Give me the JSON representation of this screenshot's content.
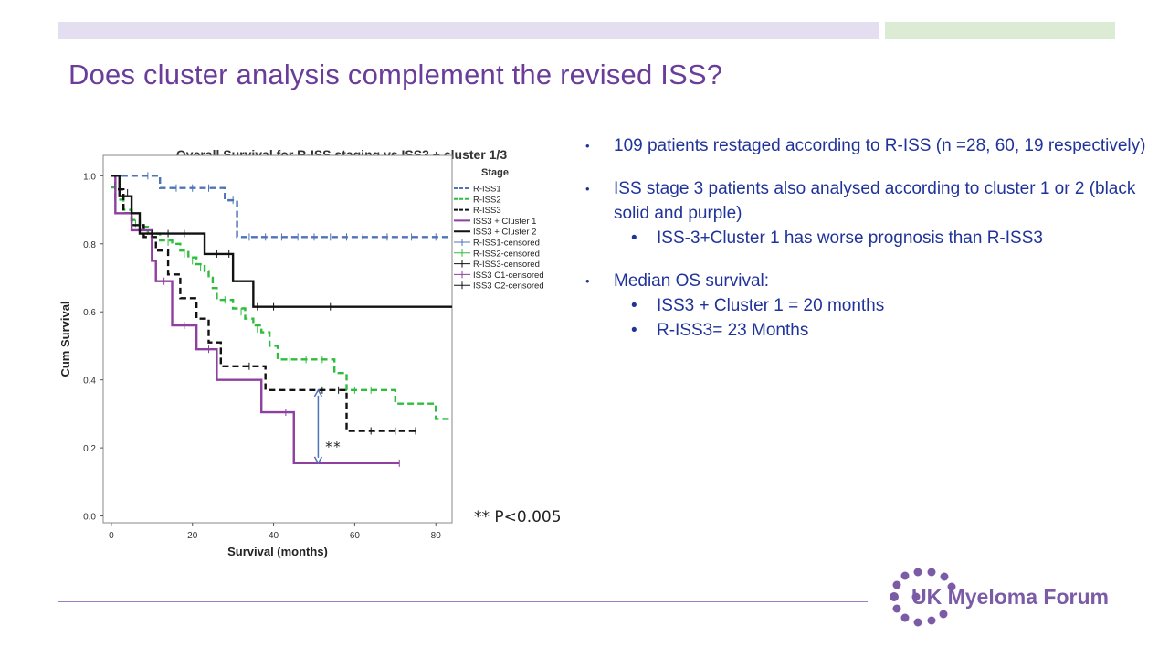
{
  "slide": {
    "title": "Does cluster analysis complement the revised ISS?",
    "p_note": "** P<0.005",
    "brand": {
      "name": "UK Myeloma Forum",
      "purple": "#6a3d9a",
      "lilac": "#e3dff0",
      "mint": "#dcebd4"
    }
  },
  "bullets": [
    {
      "level": 1,
      "text": "109 patients restaged according to R-ISS (n =28, 60, 19 respectively)"
    },
    {
      "level": 1,
      "text": "ISS stage 3 patients also analysed according to cluster 1 or 2 (black solid and purple)"
    },
    {
      "level": 2,
      "text": "ISS-3+Cluster 1 has worse prognosis than R-ISS3"
    },
    {
      "level": 1,
      "text": "Median OS survival:"
    },
    {
      "level": 2,
      "text": "ISS3 + Cluster 1 = 20 months"
    },
    {
      "level": 2,
      "text": "R-ISS3= 23 Months"
    }
  ],
  "chart_data": {
    "type": "line",
    "title": "Overall Survival for R-ISS staging vs ISS3 + cluster 1/3",
    "xlabel": "Survival (months)",
    "ylabel": "Cum Survival",
    "xlim": [
      -2,
      84
    ],
    "ylim": [
      -0.02,
      1.06
    ],
    "xticks": [
      "0",
      "20",
      "40",
      "60",
      "80"
    ],
    "yticks": [
      "0.0",
      "0.2",
      "0.4",
      "0.6",
      "0.8",
      "1.0"
    ],
    "legend_title": "Stage",
    "legend_position": "right",
    "legend": [
      {
        "label": "R-ISS1",
        "color": "#4f73b8",
        "style": "dash"
      },
      {
        "label": "R-ISS2",
        "color": "#2ebd3c",
        "style": "dash"
      },
      {
        "label": "R-ISS3",
        "color": "#111111",
        "style": "dash"
      },
      {
        "label": "ISS3 + Cluster 1",
        "color": "#8e3fa0",
        "style": "solid"
      },
      {
        "label": "ISS3 + Cluster 2",
        "color": "#111111",
        "style": "solid"
      },
      {
        "label": "R-ISS1-censored",
        "color": "#4f73b8",
        "style": "cross"
      },
      {
        "label": "R-ISS2-censored",
        "color": "#2ebd3c",
        "style": "cross"
      },
      {
        "label": "R-ISS3-censored",
        "color": "#111111",
        "style": "cross"
      },
      {
        "label": "ISS3 C1-censored",
        "color": "#8e3fa0",
        "style": "cross"
      },
      {
        "label": "ISS3 C2-censored",
        "color": "#111111",
        "style": "cross"
      }
    ],
    "series": [
      {
        "name": "R-ISS1",
        "color": "#4f73b8",
        "dash": true,
        "width": 2.4,
        "steps": [
          [
            0,
            1.0
          ],
          [
            12,
            0.964
          ],
          [
            28,
            0.928
          ],
          [
            31,
            0.82
          ],
          [
            84,
            0.82
          ]
        ],
        "censored": [
          [
            9,
            1.0
          ],
          [
            16,
            0.964
          ],
          [
            20,
            0.964
          ],
          [
            24,
            0.964
          ],
          [
            30,
            0.928
          ],
          [
            34,
            0.82
          ],
          [
            38,
            0.82
          ],
          [
            42,
            0.82
          ],
          [
            46,
            0.82
          ],
          [
            50,
            0.82
          ],
          [
            54,
            0.82
          ],
          [
            58,
            0.82
          ],
          [
            62,
            0.82
          ],
          [
            68,
            0.82
          ],
          [
            74,
            0.82
          ],
          [
            80,
            0.82
          ]
        ]
      },
      {
        "name": "R-ISS2",
        "color": "#2ebd3c",
        "dash": true,
        "width": 2.4,
        "steps": [
          [
            0,
            0.966
          ],
          [
            1,
            0.93
          ],
          [
            3,
            0.9
          ],
          [
            5,
            0.87
          ],
          [
            7,
            0.85
          ],
          [
            9,
            0.83
          ],
          [
            12,
            0.81
          ],
          [
            15,
            0.8
          ],
          [
            17,
            0.78
          ],
          [
            19,
            0.76
          ],
          [
            21,
            0.74
          ],
          [
            23,
            0.72
          ],
          [
            24,
            0.7
          ],
          [
            25,
            0.67
          ],
          [
            26,
            0.635
          ],
          [
            30,
            0.61
          ],
          [
            33,
            0.58
          ],
          [
            35,
            0.56
          ],
          [
            37,
            0.54
          ],
          [
            39,
            0.5
          ],
          [
            41,
            0.46
          ],
          [
            55,
            0.42
          ],
          [
            58,
            0.37
          ],
          [
            70,
            0.33
          ],
          [
            80,
            0.285
          ],
          [
            84,
            0.285
          ]
        ],
        "censored": [
          [
            6,
            0.86
          ],
          [
            10,
            0.82
          ],
          [
            14,
            0.805
          ],
          [
            18,
            0.77
          ],
          [
            20,
            0.75
          ],
          [
            22,
            0.73
          ],
          [
            28,
            0.635
          ],
          [
            32,
            0.6
          ],
          [
            36,
            0.55
          ],
          [
            44,
            0.46
          ],
          [
            48,
            0.46
          ],
          [
            52,
            0.46
          ],
          [
            60,
            0.37
          ],
          [
            64,
            0.37
          ]
        ]
      },
      {
        "name": "R-ISS3",
        "color": "#111111",
        "dash": true,
        "width": 2.4,
        "steps": [
          [
            0,
            1.0
          ],
          [
            1,
            0.96
          ],
          [
            3,
            0.89
          ],
          [
            5,
            0.855
          ],
          [
            8,
            0.82
          ],
          [
            11,
            0.78
          ],
          [
            14,
            0.71
          ],
          [
            17,
            0.64
          ],
          [
            21,
            0.58
          ],
          [
            24,
            0.51
          ],
          [
            27,
            0.44
          ],
          [
            31,
            0.44
          ],
          [
            38,
            0.37
          ],
          [
            58,
            0.25
          ],
          [
            75,
            0.25
          ]
        ],
        "censored": [
          [
            34,
            0.44
          ],
          [
            52,
            0.37
          ],
          [
            56,
            0.37
          ],
          [
            64,
            0.25
          ],
          [
            70,
            0.25
          ],
          [
            75,
            0.25
          ]
        ]
      },
      {
        "name": "ISS3 + Cluster 1",
        "color": "#8e3fa0",
        "dash": false,
        "width": 2.4,
        "steps": [
          [
            0,
            1.0
          ],
          [
            1,
            0.89
          ],
          [
            5,
            0.84
          ],
          [
            10,
            0.75
          ],
          [
            11,
            0.69
          ],
          [
            15,
            0.56
          ],
          [
            21,
            0.49
          ],
          [
            26,
            0.4
          ],
          [
            37,
            0.305
          ],
          [
            45,
            0.155
          ],
          [
            71,
            0.155
          ]
        ],
        "censored": [
          [
            13,
            0.69
          ],
          [
            18,
            0.56
          ],
          [
            24,
            0.49
          ],
          [
            43,
            0.305
          ],
          [
            71,
            0.155
          ]
        ]
      },
      {
        "name": "ISS3 + Cluster 2",
        "color": "#111111",
        "dash": false,
        "width": 2.4,
        "steps": [
          [
            0,
            1.0
          ],
          [
            2,
            0.94
          ],
          [
            5,
            0.89
          ],
          [
            7,
            0.83
          ],
          [
            23,
            0.77
          ],
          [
            30,
            0.69
          ],
          [
            35,
            0.615
          ],
          [
            84,
            0.615
          ]
        ],
        "censored": [
          [
            4,
            0.95
          ],
          [
            10,
            0.83
          ],
          [
            14,
            0.83
          ],
          [
            18,
            0.83
          ],
          [
            26,
            0.77
          ],
          [
            29,
            0.77
          ],
          [
            36,
            0.615
          ],
          [
            40,
            0.615
          ],
          [
            54,
            0.615
          ]
        ]
      }
    ],
    "annotation": {
      "text": "**",
      "x": 51,
      "y_top": 0.37,
      "y_bottom": 0.155,
      "color": "#4f73b8"
    }
  }
}
